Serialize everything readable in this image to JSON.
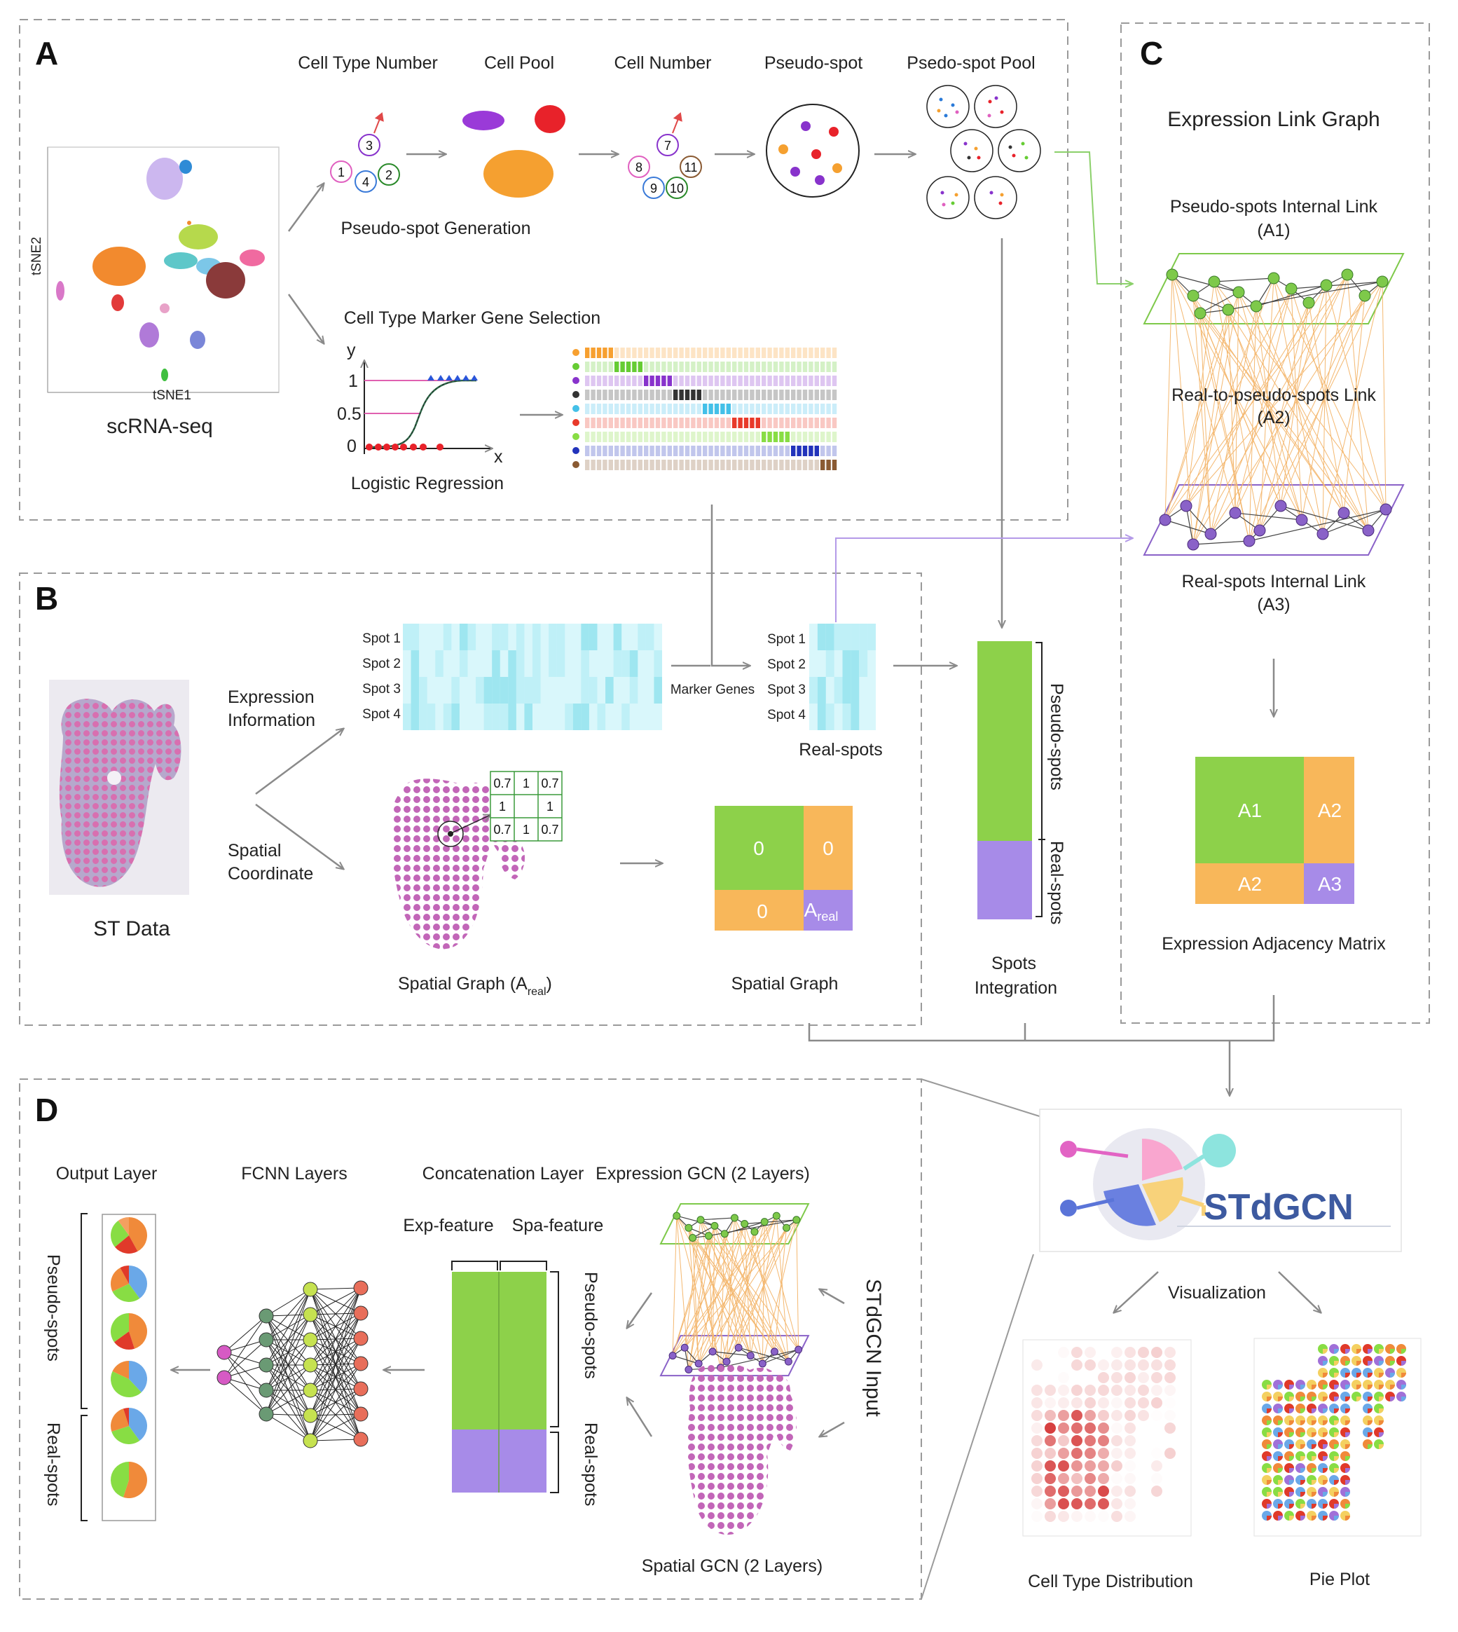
{
  "panels": {
    "a": "A",
    "b": "B",
    "c": "C",
    "d": "D"
  },
  "panel_a": {
    "cell_type_number": "Cell Type Number",
    "cell_pool": "Cell Pool",
    "cell_number": "Cell Number",
    "pseudo_spot": "Pseudo-spot",
    "pseudo_spot_pool": "Psedo-spot Pool",
    "pseudo_spot_generation": "Pseudo-spot Generation",
    "marker_gene_selection": "Cell Type Marker Gene Selection",
    "logistic_regression": "Logistic Regression",
    "scrna_seq": "scRNA-seq",
    "axis_y": "y",
    "axis_x": "x",
    "tick_1": "1",
    "tick_05": "0.5",
    "tick_0": "0",
    "tsne_y": "tSNE2",
    "tsne_x": "tSNE1",
    "type_numbers": [
      "1",
      "3",
      "4",
      "2"
    ],
    "cell_numbers": [
      "7",
      "8",
      "11",
      "9",
      "10"
    ]
  },
  "panel_b": {
    "st_data": "ST Data",
    "expression_information": [
      "Expression",
      "Information"
    ],
    "spatial_coordinate": [
      "Spatial",
      "Coordinate"
    ],
    "spots": [
      "Spot 1",
      "Spot 2",
      "Spot 3",
      "Spot 4"
    ],
    "marker_genes": "Marker Genes",
    "real_spots": "Real-spots",
    "spatial_graph_a_real": "Spatial Graph (A",
    "a_real_subscript": "real",
    "closing_paren": ")",
    "spatial_graph": "Spatial Graph",
    "matrix_cells": [
      "0.7",
      "1",
      "0.7",
      "1",
      "1",
      "0.7",
      "1",
      "0.7"
    ],
    "block_zero": "0",
    "block_a": "A",
    "spots_integration": [
      "Spots",
      "Integration"
    ],
    "pseudo_spots": "Pseudo-spots",
    "real_spots_side": "Real-spots"
  },
  "panel_c": {
    "expression_link_graph": "Expression Link Graph",
    "internal_link": [
      "Pseudo-spots Internal Link",
      "(A1)"
    ],
    "real_to_pseudo": [
      "Real-to-pseudo-spots Link",
      "(A2)"
    ],
    "real_internal": [
      "Real-spots Internal Link",
      "(A3)"
    ],
    "blocks": [
      "A1",
      "A2",
      "A2",
      "A3"
    ],
    "expression_adjacency_matrix": "Expression Adjacency Matrix"
  },
  "panel_d": {
    "output_layer": "Output Layer",
    "fcnn_layers": "FCNN Layers",
    "concatenation_layer": "Concatenation Layer",
    "expression_gcn": "Expression GCN (2 Layers)",
    "exp_feature": "Exp-feature",
    "spa_feature": "Spa-feature",
    "pseudo_spots": "Pseudo-spots",
    "real_spots": "Real-spots",
    "stdgcn_input": "STdGCN Input",
    "spatial_gcn": "Spatial GCN (2 Layers)"
  },
  "result": {
    "logo": "STdGCN",
    "visualization": "Visualization",
    "cell_type_distribution": "Cell Type Distribution",
    "pie_plot": "Pie Plot"
  },
  "colors": {
    "green": "#8dd14a",
    "purple": "#a78be8",
    "orange": "#f8b75a",
    "graph_green": "#7ec94a",
    "graph_purple": "#8a62c8",
    "heat": "#bff0f7",
    "magenta": "#c266b8"
  },
  "cell_type_colors": [
    "#f7a030",
    "#66cc33",
    "#8833cc",
    "#333333",
    "#44c0e8",
    "#e83a2a",
    "#88dd44",
    "#2233bb",
    "#8a5a32"
  ]
}
